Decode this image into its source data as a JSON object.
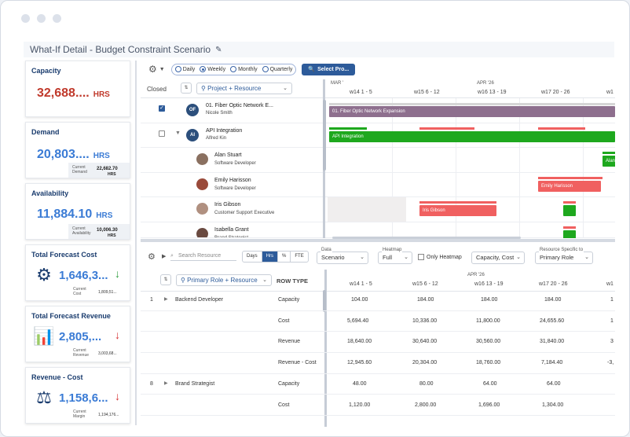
{
  "title": "What-If Detail - Budget Constraint Scenario",
  "cards": {
    "capacity": {
      "title": "Capacity",
      "value": "32,688....",
      "unit": "HRS",
      "color": "#c0392b"
    },
    "demand": {
      "title": "Demand",
      "value": "20,803....",
      "unit": "HRS",
      "color": "#3a7bd5",
      "sub_label": "Current Demand",
      "sub_value": "22,682.70",
      "sub_unit": "HRS"
    },
    "availability": {
      "title": "Availability",
      "value": "11,884.10",
      "unit": "HRS",
      "color": "#3a7bd5",
      "sub_label": "Current Availability",
      "sub_value": "10,006.30",
      "sub_unit": "HRS"
    },
    "forecast_cost": {
      "title": "Total Forecast Cost",
      "value": "1,646,3...",
      "arrow": "↓",
      "arrow_color": "#2e9e3e",
      "sub_label": "Current Cost",
      "sub_value": "1,809,51..."
    },
    "forecast_revenue": {
      "title": "Total Forecast Revenue",
      "value": "2,805,...",
      "arrow": "↓",
      "arrow_color": "#d63031",
      "sub_label": "Current Revenue",
      "sub_value": "3,003,68..."
    },
    "revenue_cost": {
      "title": "Revenue - Cost",
      "value": "1,158,6...",
      "arrow": "↓",
      "arrow_color": "#d63031",
      "sub_label": "Current Margin",
      "sub_value": "1,194,176..."
    }
  },
  "toolbar": {
    "views": [
      "Daily",
      "Weekly",
      "Monthly",
      "Quarterly"
    ],
    "selected_view": "Weekly",
    "select_button": "Select Pro..."
  },
  "gantt": {
    "closed_label": "Closed",
    "group_by": "Project + Resource",
    "months": [
      "MAR '",
      "APR '26"
    ],
    "weeks": [
      "w14 1 - 5",
      "w15 6 - 12",
      "w16 13 - 19",
      "w17 20 - 26",
      "w1"
    ],
    "rows": [
      {
        "type": "project",
        "initials": "OF",
        "name": "01. Fiber Optic Network E...",
        "owner": "Nicole Smith",
        "checked": true
      },
      {
        "type": "project",
        "initials": "AI",
        "name": "API Integration",
        "owner": "Alfred Kin",
        "checked": false
      },
      {
        "type": "resource",
        "name": "Alan Stuart",
        "role": "Software Developer"
      },
      {
        "type": "resource",
        "name": "Emily Harisson",
        "role": "Software Developer"
      },
      {
        "type": "resource",
        "name": "Iris Gibson",
        "role": "Customer Support Executive"
      },
      {
        "type": "resource",
        "name": "Isabella Grant",
        "role": "Brand Strategist"
      }
    ],
    "bars": {
      "fiber": "01. Fiber Optic Network Expansion",
      "api": "API Integration",
      "alan": "Alan",
      "emily": "Emily Harisson",
      "iris": "Iris Gibson"
    },
    "colors": {
      "project": "#8e6f8e",
      "green": "#1ea81e",
      "red": "#f06060"
    }
  },
  "bottom": {
    "search_placeholder": "Search Resource",
    "units": [
      "Days",
      "Hrs",
      "%",
      "FTE"
    ],
    "selected_unit": "Hrs",
    "data_label": "Data",
    "data_value": "Scenario",
    "heatmap_label": "Heatmap",
    "heatmap_value": "Full",
    "only_heatmap": "Only Heatmap",
    "metric_value": "Capacity, Cost",
    "resource_label": "Resource Specific to",
    "resource_value": "Primary Role",
    "group_by": "Primary Role + Resource",
    "row_type_header": "ROW TYPE",
    "month": "APR '26",
    "weeks": [
      "w14 1 - 5",
      "w15 6 - 12",
      "w16 13 - 19",
      "w17 20 - 26",
      "w1"
    ],
    "rows": [
      {
        "num": "1",
        "group": "Backend Developer",
        "type": "Capacity",
        "vals": [
          "104.00",
          "184.00",
          "184.00",
          "184.00",
          "1"
        ]
      },
      {
        "num": "",
        "group": "",
        "type": "Cost",
        "vals": [
          "5,694.40",
          "10,336.00",
          "11,800.00",
          "24,655.60",
          "1"
        ]
      },
      {
        "num": "",
        "group": "",
        "type": "Revenue",
        "vals": [
          "18,640.00",
          "30,640.00",
          "30,560.00",
          "31,840.00",
          "3"
        ]
      },
      {
        "num": "",
        "group": "",
        "type": "Revenue - Cost",
        "vals": [
          "12,945.60",
          "20,304.00",
          "18,760.00",
          "7,184.40",
          "-3,"
        ]
      },
      {
        "num": "8",
        "group": "Brand Strategist",
        "type": "Capacity",
        "vals": [
          "48.00",
          "80.00",
          "64.00",
          "64.00",
          ""
        ]
      },
      {
        "num": "",
        "group": "",
        "type": "Cost",
        "vals": [
          "1,120.00",
          "2,800.00",
          "1,696.00",
          "1,304.00",
          ""
        ]
      }
    ]
  }
}
